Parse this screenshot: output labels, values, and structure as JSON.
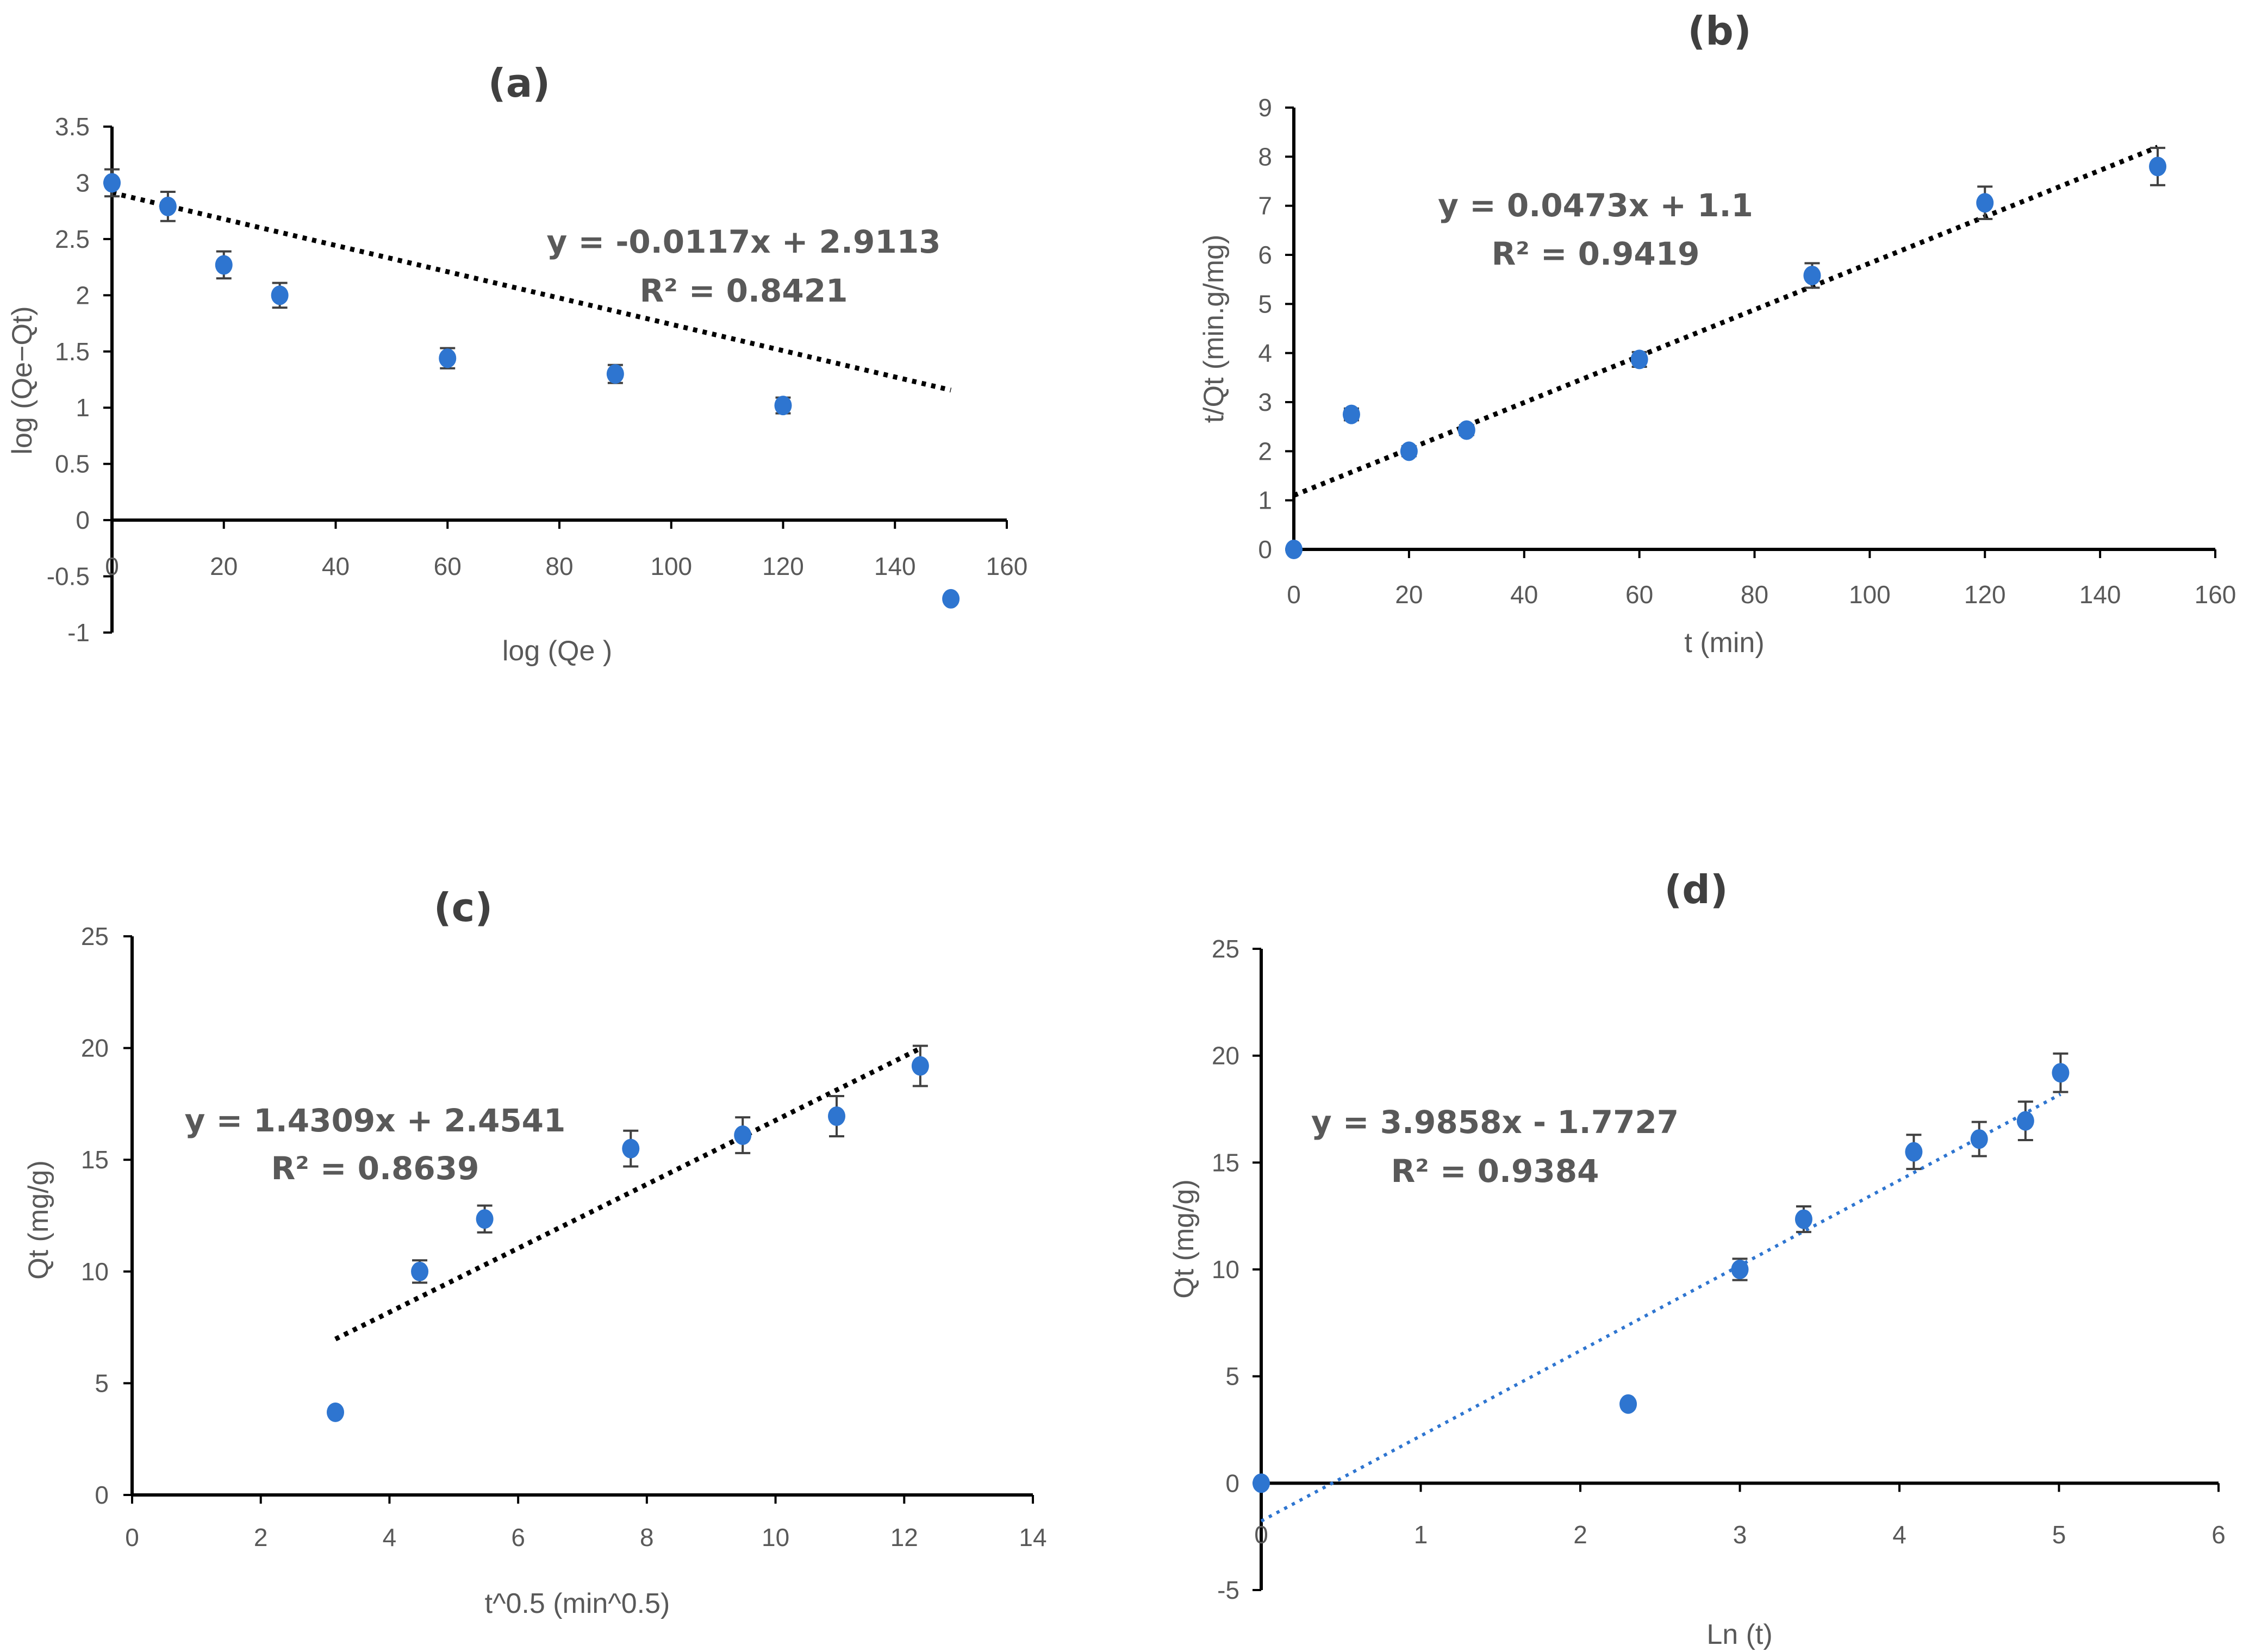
{
  "colors": {
    "point": "#2e75d0",
    "errorbar": "#404040",
    "axis": "#000000",
    "trend_black": "#000000",
    "trend_blue": "#2e75d0",
    "text": "#595959"
  },
  "chart_data": [
    {
      "id": "a",
      "type": "scatter",
      "title": "(a)",
      "xlabel": "log (Qe )",
      "ylabel": "log (Qe−Qt)",
      "xlim": [
        0,
        160
      ],
      "ylim": [
        -1,
        3.5
      ],
      "x_ticks": [
        "0",
        "20",
        "40",
        "60",
        "80",
        "100",
        "120",
        "140",
        "160"
      ],
      "y_ticks": [
        "-1",
        "-0.5",
        "0",
        "0.5",
        "1",
        "1.5",
        "2",
        "2.5",
        "3",
        "3.5"
      ],
      "x": [
        0,
        10,
        20,
        30,
        60,
        90,
        120,
        150
      ],
      "y": [
        3.0,
        2.79,
        2.27,
        2.0,
        1.44,
        1.3,
        1.02,
        -0.7
      ],
      "error": [
        0.12,
        0.13,
        0.12,
        0.11,
        0.09,
        0.08,
        0.07,
        0.0
      ],
      "trendline": {
        "slope": -0.0117,
        "intercept": 2.9113,
        "x_range": [
          0,
          150
        ],
        "style": "black"
      },
      "equation": "y = -0.0117x + 2.9113",
      "r2": "R² = 0.8421"
    },
    {
      "id": "b",
      "type": "scatter",
      "title": "(b)",
      "xlabel": "t (min)",
      "ylabel": "t/Qt (min.g/mg)",
      "xlim": [
        0,
        160
      ],
      "ylim": [
        0,
        9
      ],
      "x_ticks": [
        "0",
        "20",
        "40",
        "60",
        "80",
        "100",
        "120",
        "140",
        "160"
      ],
      "y_ticks": [
        "0",
        "1",
        "2",
        "3",
        "4",
        "5",
        "6",
        "7",
        "8",
        "9"
      ],
      "x": [
        0,
        10,
        20,
        30,
        60,
        90,
        120,
        150
      ],
      "y": [
        0,
        2.75,
        2.0,
        2.43,
        3.87,
        5.58,
        7.06,
        7.8
      ],
      "error": [
        0.0,
        0.12,
        0.1,
        0.1,
        0.15,
        0.25,
        0.33,
        0.38
      ],
      "trendline": {
        "slope": 0.0473,
        "intercept": 1.1,
        "x_range": [
          0,
          150
        ],
        "style": "black"
      },
      "equation": "y = 0.0473x + 1.1",
      "r2": "R² = 0.9419"
    },
    {
      "id": "c",
      "type": "scatter",
      "title": "(c)",
      "xlabel": "t^0.5 (min^0.5)",
      "ylabel": "Qt (mg/g)",
      "xlim": [
        0,
        14
      ],
      "ylim": [
        0,
        25
      ],
      "x_ticks": [
        "0",
        "2",
        "4",
        "6",
        "8",
        "10",
        "12",
        "14"
      ],
      "y_ticks": [
        "0",
        "5",
        "10",
        "15",
        "20",
        "25"
      ],
      "x": [
        3.16,
        4.47,
        5.48,
        7.75,
        9.49,
        10.95,
        12.25
      ],
      "y": [
        3.7,
        10.0,
        12.35,
        15.5,
        16.1,
        16.95,
        19.2
      ],
      "error": [
        0.0,
        0.5,
        0.6,
        0.8,
        0.8,
        0.9,
        0.9
      ],
      "trendline": {
        "slope": 1.4309,
        "intercept": 2.4541,
        "x_range": [
          3.16,
          12.25
        ],
        "style": "black"
      },
      "equation": "y = 1.4309x + 2.4541",
      "r2": "R² = 0.8639"
    },
    {
      "id": "d",
      "type": "scatter",
      "title": "(d)",
      "xlabel": "Ln (t)",
      "ylabel": "Qt (mg/g)",
      "xlim": [
        0,
        6
      ],
      "ylim": [
        -5,
        25
      ],
      "x_ticks": [
        "0",
        "1",
        "2",
        "3",
        "4",
        "5",
        "6"
      ],
      "y_ticks": [
        "-5",
        "0",
        "5",
        "10",
        "15",
        "20",
        "25"
      ],
      "x": [
        0,
        2.3,
        3.0,
        3.4,
        4.09,
        4.5,
        4.79,
        5.01
      ],
      "y": [
        0,
        3.7,
        10.0,
        12.35,
        15.5,
        16.1,
        16.95,
        19.2
      ],
      "error": [
        0.0,
        0.0,
        0.5,
        0.6,
        0.8,
        0.8,
        0.9,
        0.9
      ],
      "trendline": {
        "slope": 3.9858,
        "intercept": -1.7727,
        "x_range": [
          0,
          5.01
        ],
        "style": "blue"
      },
      "equation": "y = 3.9858x - 1.7727",
      "r2": "R² = 0.9384"
    }
  ]
}
